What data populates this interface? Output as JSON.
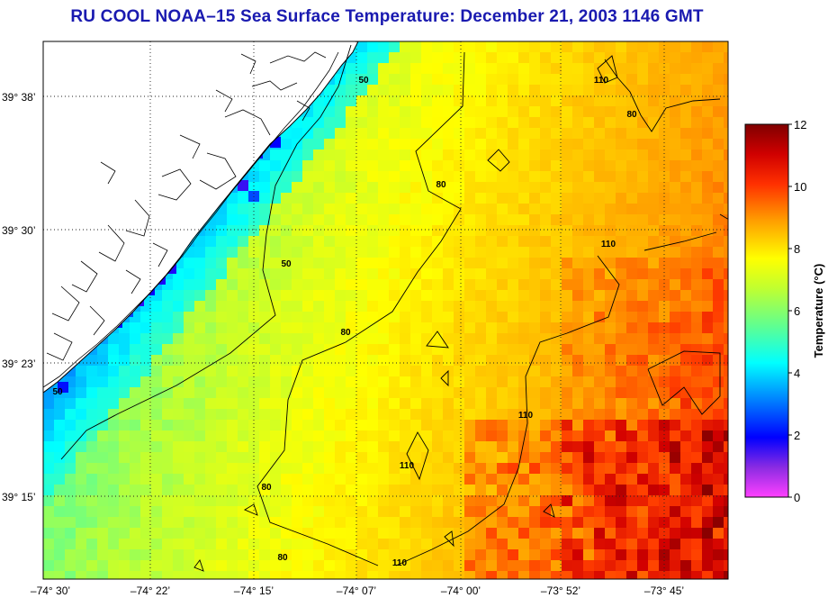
{
  "title": "RU COOL  NOAA–15  Sea Surface Temperature:  December 21, 2003 1146 GMT",
  "colors": {
    "title": "#1a1ab0",
    "land": "#ffffff",
    "coast": "#000000",
    "grid": "#333333"
  },
  "lat_ticks": [
    "39° 38’",
    "39° 30’",
    "39° 23’",
    "39° 15’"
  ],
  "lon_ticks": [
    "–74° 30’",
    "–74° 22’",
    "–74° 15’",
    "–74° 07’",
    "–74° 00’",
    "–73° 52’",
    "–73° 45’"
  ],
  "contour_labels": [
    "50",
    "50",
    "50",
    "80",
    "80",
    "80",
    "80",
    "80",
    "110",
    "110",
    "110",
    "110",
    "110"
  ],
  "colorbar": {
    "title": "Temperature (°C)",
    "ticks": [
      "0",
      "2",
      "4",
      "6",
      "8",
      "10",
      "12"
    ],
    "min": 0,
    "max": 12
  }
}
